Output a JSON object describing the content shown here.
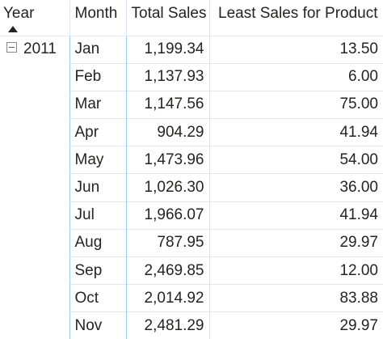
{
  "matrix": {
    "headers": {
      "year": "Year",
      "month": "Month",
      "total_sales": "Total Sales",
      "least_sales": "Least Sales for Product"
    },
    "year_group": {
      "year": "2011",
      "expand_icon": "collapse-minus-icon"
    },
    "rows": [
      {
        "month": "Jan",
        "total": "1,199.34",
        "least": "13.50"
      },
      {
        "month": "Feb",
        "total": "1,137.93",
        "least": "6.00"
      },
      {
        "month": "Mar",
        "total": "1,147.56",
        "least": "75.00"
      },
      {
        "month": "Apr",
        "total": "904.29",
        "least": "41.94"
      },
      {
        "month": "May",
        "total": "1,473.96",
        "least": "54.00"
      },
      {
        "month": "Jun",
        "total": "1,026.30",
        "least": "36.00"
      },
      {
        "month": "Jul",
        "total": "1,966.07",
        "least": "41.94"
      },
      {
        "month": "Aug",
        "total": "787.95",
        "least": "29.97"
      },
      {
        "month": "Sep",
        "total": "2,469.85",
        "least": "12.00"
      },
      {
        "month": "Oct",
        "total": "2,014.92",
        "least": "83.88"
      },
      {
        "month": "Nov",
        "total": "2,481.29",
        "least": "29.97"
      }
    ]
  }
}
